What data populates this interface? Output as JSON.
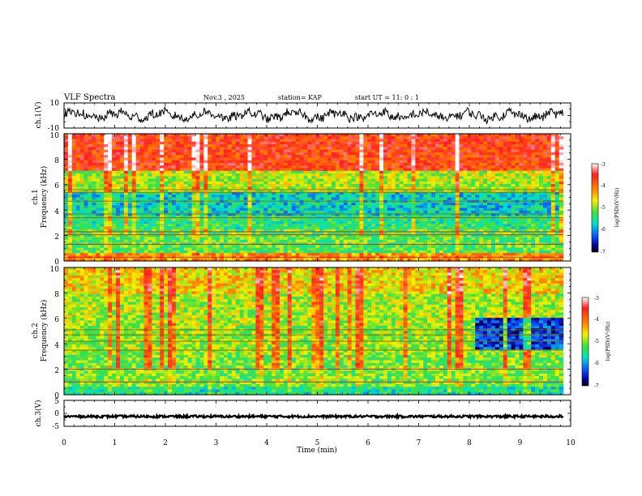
{
  "chart_data": {
    "type": "heatmap",
    "header": {
      "title": "VLF Spectra",
      "date": "Nov.3  , 2025",
      "station": "station= KAP",
      "start": "start  UT  =   11: 0   : 1"
    },
    "x_axis": {
      "label": "Time  (min)",
      "range": [
        0,
        10
      ],
      "ticks": [
        "0",
        "1",
        "2",
        "3",
        "4",
        "5",
        "6",
        "7",
        "8",
        "9",
        "10"
      ]
    },
    "panels": [
      {
        "id": "ch1-waveform",
        "type": "line",
        "ylabel": "ch.1(V)",
        "ylim": [
          -10,
          10
        ],
        "yticks": [
          "10",
          "-10"
        ],
        "data_end_min": 9.85
      },
      {
        "id": "ch1-spectrogram",
        "type": "heatmap",
        "ylabel_top": "ch.1",
        "ylabel": "Frequency  (kHz)",
        "ylim": [
          0,
          10
        ],
        "yticks": [
          "10",
          "8",
          "6",
          "4",
          "2",
          "0"
        ],
        "data_end_min": 9.85,
        "dominant_level_by_freq": [
          {
            "f_khz": [
              0.0,
              0.7
            ],
            "level": -4.3
          },
          {
            "f_khz": [
              0.7,
              2.4
            ],
            "level": -5.2
          },
          {
            "f_khz": [
              2.4,
              3.5
            ],
            "level": -5.4
          },
          {
            "f_khz": [
              3.5,
              5.5
            ],
            "level": -5.7
          },
          {
            "f_khz": [
              5.5,
              7.0
            ],
            "level": -4.9
          },
          {
            "f_khz": [
              7.0,
              10.0
            ],
            "level": -3.8
          }
        ],
        "hum_lines_khz": [
          0.3,
          1.3,
          2.05,
          2.3,
          3.4,
          3.7,
          4.7,
          5.4,
          5.6
        ],
        "colorbar": {
          "label": "log(PSD)(V²/Hz)",
          "ticks": [
            "-3",
            "-4",
            "-5",
            "-6",
            "-7"
          ],
          "range": [
            -7,
            -3
          ]
        }
      },
      {
        "id": "ch2-spectrogram",
        "type": "heatmap",
        "ylabel_top": "ch.2",
        "ylabel": "Frequency  (kHz)",
        "ylim": [
          0,
          10
        ],
        "yticks": [
          "10",
          "8",
          "6",
          "4",
          "2",
          "0"
        ],
        "data_end_min": 9.85,
        "dominant_level_by_freq": [
          {
            "f_khz": [
              0.0,
              0.7
            ],
            "level": -5.5
          },
          {
            "f_khz": [
              0.7,
              3.0
            ],
            "level": -5.1
          },
          {
            "f_khz": [
              3.0,
              5.5
            ],
            "level": -5.0
          },
          {
            "f_khz": [
              5.5,
              8.0
            ],
            "level": -4.9
          },
          {
            "f_khz": [
              8.0,
              10.0
            ],
            "level": -4.6
          }
        ],
        "low_power_patch": {
          "t_min": [
            8.1,
            9.85
          ],
          "f_khz": [
            3.5,
            6.0
          ],
          "level": -6.3
        },
        "hum_lines_khz": [
          1.0,
          2.0,
          3.5,
          4.2,
          4.7,
          5.1
        ],
        "colorbar": {
          "label": "log(PSD)(V²/Hz)",
          "ticks": [
            "-3",
            "-4",
            "-5",
            "-6",
            "-7"
          ],
          "range": [
            -7,
            -3
          ]
        }
      },
      {
        "id": "ch3-waveform",
        "type": "line",
        "ylabel": "ch.3(V)",
        "ylim": [
          -5,
          5
        ],
        "yticks": [
          "5",
          "0",
          "-5"
        ],
        "offset_v": -1.2,
        "data_end_min": 9.85
      }
    ]
  }
}
